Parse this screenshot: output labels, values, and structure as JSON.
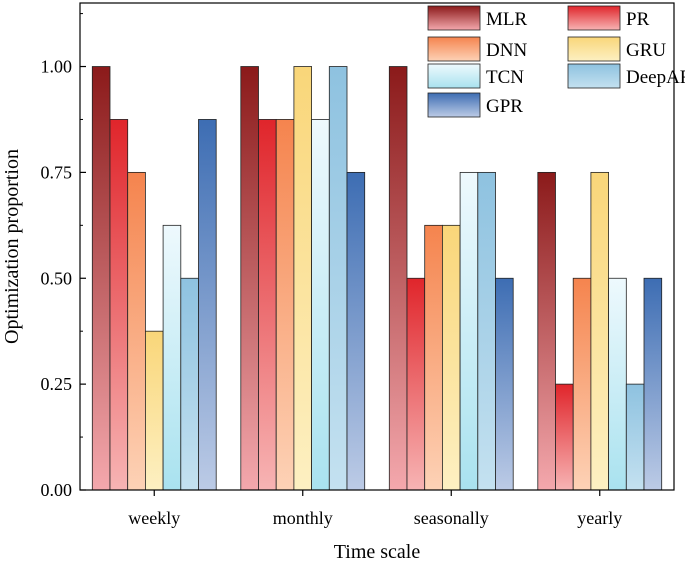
{
  "chart_data": {
    "type": "bar",
    "title": "",
    "xlabel": "Time scale",
    "ylabel": "Optimization proportion",
    "ylim": [
      0,
      1.15
    ],
    "yticks": [
      "0.00",
      "0.25",
      "0.50",
      "0.75",
      "1.00"
    ],
    "ytick_values": [
      0,
      0.25,
      0.5,
      0.75,
      1.0
    ],
    "categories": [
      "weekly",
      "monthly",
      "seasonally",
      "yearly"
    ],
    "legend_position": "top-right",
    "grid": false,
    "series": [
      {
        "name": "MLR",
        "values": [
          1.0,
          1.0,
          1.0,
          0.75
        ],
        "color_top": "#8b1a1a",
        "color_bottom": "#f4a8ad"
      },
      {
        "name": "PR",
        "values": [
          0.875,
          0.875,
          0.5,
          0.25
        ],
        "color_top": "#e0252b",
        "color_bottom": "#f7b4b4"
      },
      {
        "name": "DNN",
        "values": [
          0.75,
          0.875,
          0.625,
          0.5
        ],
        "color_top": "#f5844e",
        "color_bottom": "#fdd2b6"
      },
      {
        "name": "GRU",
        "values": [
          0.375,
          1.0,
          0.625,
          0.75
        ],
        "color_top": "#f9d679",
        "color_bottom": "#fdf0c2"
      },
      {
        "name": "TCN",
        "values": [
          0.625,
          0.875,
          0.75,
          0.5
        ],
        "color_top": "#eef9fd",
        "color_bottom": "#a9e2ef"
      },
      {
        "name": "DeepAR",
        "values": [
          0.5,
          1.0,
          0.75,
          0.25
        ],
        "color_top": "#8ec2e0",
        "color_bottom": "#c4e1f0"
      },
      {
        "name": "GPR",
        "values": [
          0.875,
          0.75,
          0.5,
          0.5
        ],
        "color_top": "#3d6db3",
        "color_bottom": "#bccbe6"
      }
    ]
  }
}
